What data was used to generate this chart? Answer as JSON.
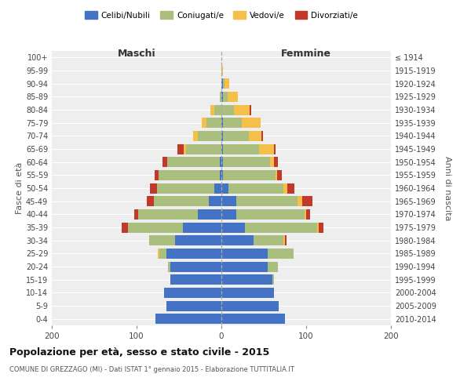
{
  "age_groups": [
    "0-4",
    "5-9",
    "10-14",
    "15-19",
    "20-24",
    "25-29",
    "30-34",
    "35-39",
    "40-44",
    "45-49",
    "50-54",
    "55-59",
    "60-64",
    "65-69",
    "70-74",
    "75-79",
    "80-84",
    "85-89",
    "90-94",
    "95-99",
    "100+"
  ],
  "birth_years": [
    "2010-2014",
    "2005-2009",
    "2000-2004",
    "1995-1999",
    "1990-1994",
    "1985-1989",
    "1980-1984",
    "1975-1979",
    "1970-1974",
    "1965-1969",
    "1960-1964",
    "1955-1959",
    "1950-1954",
    "1945-1949",
    "1940-1944",
    "1935-1939",
    "1930-1934",
    "1925-1929",
    "1920-1924",
    "1915-1919",
    "≤ 1914"
  ],
  "maschi": {
    "celibi": [
      78,
      65,
      68,
      60,
      60,
      65,
      55,
      45,
      28,
      15,
      8,
      2,
      2,
      0,
      0,
      0,
      0,
      0,
      0,
      0,
      0
    ],
    "coniugati": [
      0,
      0,
      0,
      0,
      3,
      8,
      30,
      65,
      70,
      65,
      68,
      72,
      62,
      42,
      28,
      18,
      8,
      2,
      0,
      0,
      0
    ],
    "vedovi": [
      0,
      0,
      0,
      0,
      0,
      2,
      0,
      0,
      0,
      0,
      0,
      0,
      0,
      2,
      5,
      5,
      5,
      0,
      0,
      0,
      0
    ],
    "divorziati": [
      0,
      0,
      0,
      0,
      0,
      0,
      0,
      8,
      5,
      8,
      8,
      5,
      5,
      8,
      0,
      0,
      0,
      0,
      0,
      0,
      0
    ]
  },
  "femmine": {
    "nubili": [
      75,
      68,
      62,
      60,
      55,
      55,
      38,
      28,
      18,
      18,
      8,
      2,
      2,
      2,
      2,
      2,
      0,
      2,
      2,
      0,
      0
    ],
    "coniugate": [
      0,
      0,
      0,
      2,
      12,
      30,
      35,
      85,
      80,
      72,
      65,
      62,
      55,
      42,
      30,
      22,
      15,
      5,
      2,
      0,
      0
    ],
    "vedove": [
      0,
      0,
      0,
      0,
      0,
      0,
      2,
      2,
      2,
      5,
      5,
      2,
      5,
      18,
      15,
      22,
      18,
      12,
      5,
      2,
      0
    ],
    "divorziate": [
      0,
      0,
      0,
      0,
      0,
      0,
      2,
      5,
      5,
      12,
      8,
      5,
      5,
      2,
      2,
      0,
      2,
      0,
      0,
      0,
      0
    ]
  },
  "colors": {
    "celibi": "#4472C4",
    "coniugati": "#AABF7E",
    "vedovi": "#F5C04A",
    "divorziati": "#C0392B"
  },
  "title": "Popolazione per età, sesso e stato civile - 2015",
  "subtitle": "COMUNE DI GREZZAGO (MI) - Dati ISTAT 1° gennaio 2015 - Elaborazione TUTTITALIA.IT",
  "xlabel_left": "Maschi",
  "xlabel_right": "Femmine",
  "ylabel_left": "Fasce di età",
  "ylabel_right": "Anni di nascita",
  "xlim": 200,
  "legend_labels": [
    "Celibi/Nubili",
    "Coniugati/e",
    "Vedovi/e",
    "Divorziati/e"
  ],
  "bg_plot": "#eeeeee",
  "bg_fig": "#ffffff",
  "grid_color": "#ffffff",
  "center_line_color": "#aaaaaa"
}
